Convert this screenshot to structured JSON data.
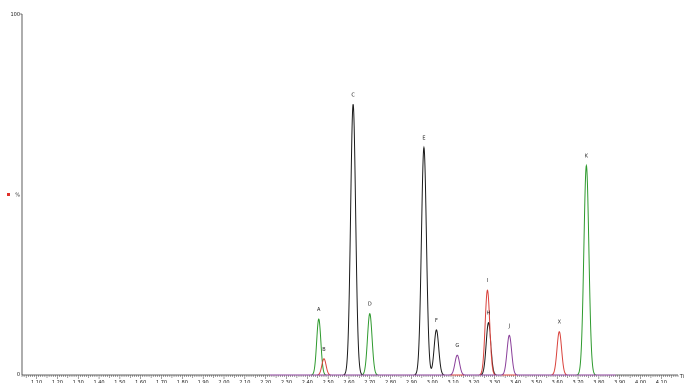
{
  "chart_data": {
    "type": "line",
    "title": "",
    "xlabel": "",
    "ylabel": "",
    "x_unit_label": "Ti",
    "y_axis_labels": [
      "100",
      "%",
      "0"
    ],
    "xlim": [
      1.03,
      4.18
    ],
    "ylim": [
      0,
      100
    ],
    "x_ticks": [
      "1.10",
      "1.20",
      "1.30",
      "1.40",
      "1.50",
      "1.60",
      "1.70",
      "1.80",
      "1.90",
      "2.00",
      "2.10",
      "2.20",
      "2.30",
      "2.40",
      "2.50",
      "2.60",
      "2.70",
      "2.80",
      "2.90",
      "3.00",
      "3.10",
      "3.20",
      "3.30",
      "3.40",
      "3.50",
      "3.60",
      "3.70",
      "3.80",
      "3.90",
      "4.00",
      "4.10"
    ],
    "marker_color": "#e0302a",
    "series": [
      {
        "color": "#1a1a1a",
        "peaks": [
          {
            "label": "C",
            "rt": 2.62,
            "height": 75,
            "width": 0.012
          },
          {
            "label": "E",
            "rt": 2.96,
            "height": 63,
            "width": 0.012
          },
          {
            "label": "F",
            "rt": 3.02,
            "height": 12.5,
            "width": 0.011
          },
          {
            "label": "H",
            "rt": 3.27,
            "height": 14.5,
            "width": 0.011
          }
        ]
      },
      {
        "color": "#2e9a2e",
        "peaks": [
          {
            "label": "A",
            "rt": 2.455,
            "height": 15.5,
            "width": 0.01
          },
          {
            "label": "D",
            "rt": 2.7,
            "height": 17,
            "width": 0.011
          },
          {
            "label": "K",
            "rt": 3.74,
            "height": 58,
            "width": 0.012
          }
        ]
      },
      {
        "color": "#d9423c",
        "peaks": [
          {
            "label": "B",
            "rt": 2.48,
            "height": 4.5,
            "width": 0.01
          },
          {
            "label": "I",
            "rt": 3.265,
            "height": 23.5,
            "width": 0.011
          },
          {
            "label": "X",
            "rt": 3.61,
            "height": 12,
            "width": 0.011
          }
        ]
      },
      {
        "color": "#8a3f9a",
        "peaks": [
          {
            "label": "G",
            "rt": 3.12,
            "height": 5.5,
            "width": 0.011
          },
          {
            "label": "J",
            "rt": 3.37,
            "height": 11,
            "width": 0.011
          }
        ]
      }
    ],
    "grid": false,
    "legend": "none"
  }
}
